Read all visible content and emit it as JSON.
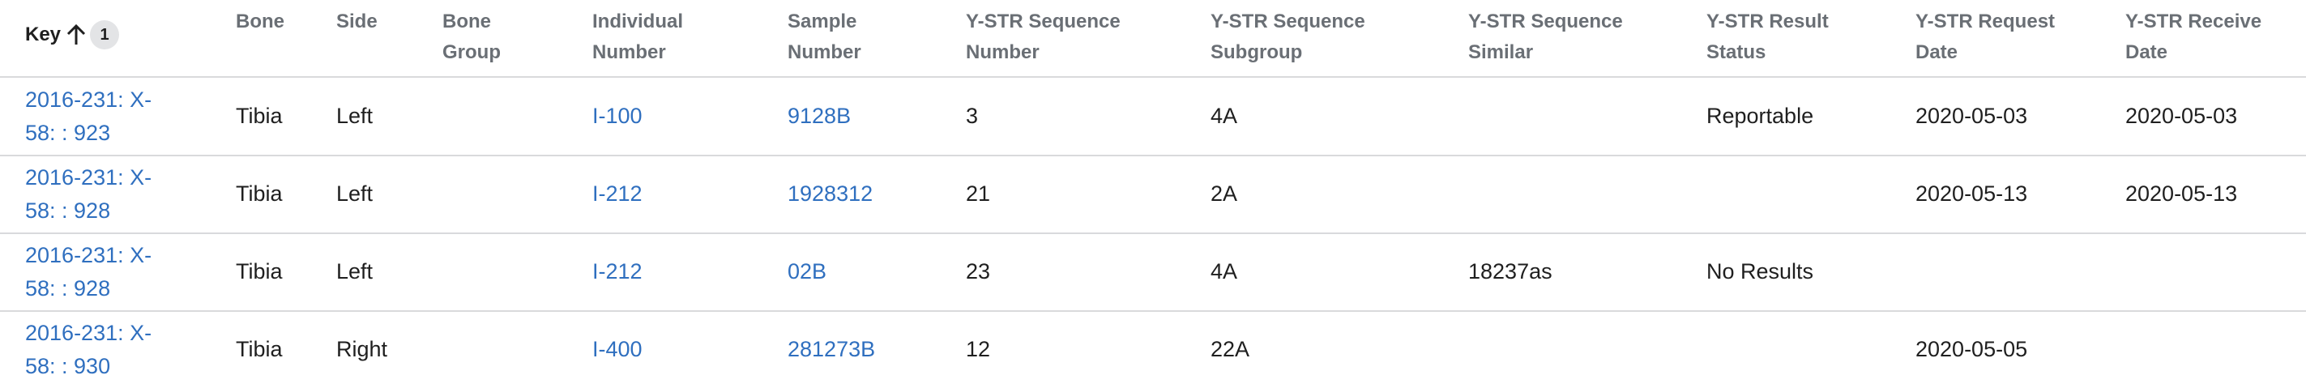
{
  "table": {
    "sort": {
      "column": "Key",
      "order": "1",
      "icon": "arrow-up-icon"
    },
    "headers": [
      {
        "id": "key",
        "label": "Key"
      },
      {
        "id": "bone",
        "label": "Bone"
      },
      {
        "id": "side",
        "label": "Side"
      },
      {
        "id": "bone_group",
        "label": "Bone\nGroup"
      },
      {
        "id": "individual_number",
        "label": "Individual\nNumber"
      },
      {
        "id": "sample_number",
        "label": "Sample\nNumber"
      },
      {
        "id": "ystr_seq_number",
        "label": "Y-STR Sequence\nNumber"
      },
      {
        "id": "ystr_seq_subgroup",
        "label": "Y-STR Sequence\nSubgroup"
      },
      {
        "id": "ystr_seq_similar",
        "label": "Y-STR Sequence\nSimilar"
      },
      {
        "id": "ystr_result_status",
        "label": "Y-STR Result\nStatus"
      },
      {
        "id": "ystr_request_date",
        "label": "Y-STR Request\nDate"
      },
      {
        "id": "ystr_receive_date",
        "label": "Y-STR Receive\nDate"
      }
    ],
    "rows": [
      {
        "key": "2016-231: X-\n58: : 923",
        "bone": "Tibia",
        "side": "Left",
        "bone_group": "",
        "individual_number": "I-100",
        "sample_number": "9128B",
        "ystr_seq_number": "3",
        "ystr_seq_subgroup": "4A",
        "ystr_seq_similar": "",
        "ystr_result_status": "Reportable",
        "ystr_request_date": "2020-05-03",
        "ystr_receive_date": "2020-05-03"
      },
      {
        "key": "2016-231: X-\n58: : 928",
        "bone": "Tibia",
        "side": "Left",
        "bone_group": "",
        "individual_number": "I-212",
        "sample_number": "1928312",
        "ystr_seq_number": "21",
        "ystr_seq_subgroup": "2A",
        "ystr_seq_similar": "",
        "ystr_result_status": "",
        "ystr_request_date": "2020-05-13",
        "ystr_receive_date": "2020-05-13"
      },
      {
        "key": "2016-231: X-\n58: : 928",
        "bone": "Tibia",
        "side": "Left",
        "bone_group": "",
        "individual_number": "I-212",
        "sample_number": "02B",
        "ystr_seq_number": "23",
        "ystr_seq_subgroup": "4A",
        "ystr_seq_similar": "18237as",
        "ystr_result_status": "No Results",
        "ystr_request_date": "",
        "ystr_receive_date": ""
      },
      {
        "key": "2016-231: X-\n58: : 930",
        "bone": "Tibia",
        "side": "Right",
        "bone_group": "",
        "individual_number": "I-400",
        "sample_number": "281273B",
        "ystr_seq_number": "12",
        "ystr_seq_subgroup": "22A",
        "ystr_seq_similar": "",
        "ystr_result_status": "",
        "ystr_request_date": "2020-05-05",
        "ystr_receive_date": ""
      }
    ]
  }
}
